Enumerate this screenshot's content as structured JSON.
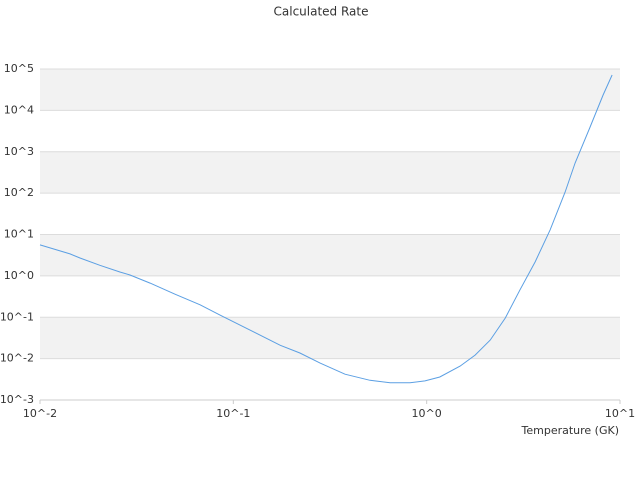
{
  "chart_data": {
    "type": "line",
    "title": "Calculated Rate",
    "x_label": "Temperature (GK)",
    "log_x": true,
    "log_y": true,
    "grid": true,
    "banded": true,
    "xlim": [
      0.01,
      10
    ],
    "ylim": [
      0.001,
      100000
    ],
    "xticks": [
      {
        "value": 0.01,
        "label": "10^-2"
      },
      {
        "value": 0.1,
        "label": "10^-1"
      },
      {
        "value": 1,
        "label": "10^0"
      },
      {
        "value": 10,
        "label": "10^1"
      }
    ],
    "yticks": [
      {
        "value": 0.001,
        "label": "10^-3"
      },
      {
        "value": 0.01,
        "label": "10^-2"
      },
      {
        "value": 0.1,
        "label": "10^-1"
      },
      {
        "value": 1,
        "label": "10^0"
      },
      {
        "value": 10,
        "label": "10^1"
      },
      {
        "value": 100,
        "label": "10^2"
      },
      {
        "value": 1000,
        "label": "10^3"
      },
      {
        "value": 10000,
        "label": "10^4"
      },
      {
        "value": 100000,
        "label": "10^5"
      }
    ],
    "x": [
      0.01,
      0.0143,
      0.0161,
      0.0204,
      0.0259,
      0.0292,
      0.0371,
      0.0499,
      0.0673,
      0.0853,
      0.122,
      0.175,
      0.221,
      0.281,
      0.378,
      0.509,
      0.647,
      0.82,
      0.98,
      1.17,
      1.49,
      1.78,
      2.13,
      2.55,
      3.04,
      3.64,
      4.35,
      5.2,
      5.86,
      7.0,
      8.18,
      9.1
    ],
    "series": [
      {
        "color": "#5b9fe3",
        "values": [
          5.6,
          3.4,
          2.7,
          1.8,
          1.24,
          1.05,
          0.67,
          0.36,
          0.2,
          0.113,
          0.049,
          0.021,
          0.0137,
          0.0078,
          0.0042,
          0.003,
          0.0026,
          0.0026,
          0.0029,
          0.0036,
          0.0066,
          0.0122,
          0.028,
          0.096,
          0.46,
          2.16,
          12.9,
          106,
          535,
          3960,
          23500,
          71600
        ]
      }
    ]
  }
}
